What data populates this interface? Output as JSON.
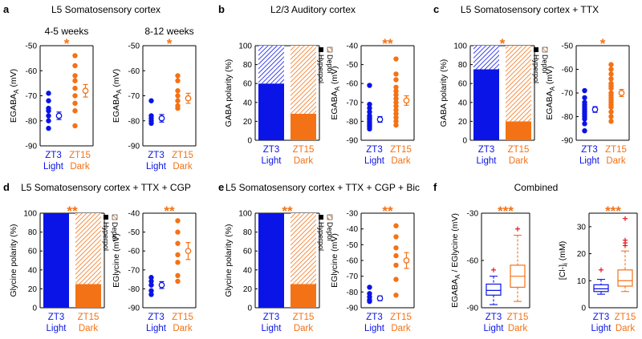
{
  "colors": {
    "light": "#0a14e6",
    "dark": "#f47216",
    "outlier": "#e8141e",
    "axis": "#000000"
  },
  "panels": [
    {
      "label": "a",
      "title": "L5 Somatosensory cortex"
    },
    {
      "label": "b",
      "title": "L2/3 Auditory cortex"
    },
    {
      "label": "c",
      "title": "L5 Somatosensory cortex + TTX"
    },
    {
      "label": "d",
      "title": "L5 Somatosensory cortex + TTX + CGP"
    },
    {
      "label": "e",
      "title": "L5 Somatosensory cortex + TTX + CGP + Bic"
    },
    {
      "label": "f",
      "title": "Combined"
    }
  ],
  "legend": {
    "depol": "Depol",
    "hyperpol": "Hyperpol"
  },
  "chart_data": [
    {
      "id": "a1",
      "type": "scatter",
      "subtitle": "4-5 weeks",
      "ylabel": "EGABA_A (mV)",
      "ylim": [
        -90,
        -50
      ],
      "yticks": [
        -90,
        -80,
        -70,
        -60,
        -50
      ],
      "categories": [
        [
          "ZT3",
          "Light"
        ],
        [
          "ZT15",
          "Dark"
        ]
      ],
      "sig": "*",
      "series": [
        {
          "name": "ZT3 Light",
          "values": [
            -69,
            -72,
            -75,
            -76,
            -78,
            -80,
            -83
          ],
          "mean": -78,
          "sem": 1.5
        },
        {
          "name": "ZT15 Dark",
          "values": [
            -54,
            -58,
            -62,
            -64,
            -67,
            -70,
            -73,
            -76,
            -82
          ],
          "mean": -68,
          "sem": 2.5
        }
      ]
    },
    {
      "id": "a2",
      "type": "scatter",
      "subtitle": "8-12 weeks",
      "ylabel": "EGABA_A (mV)",
      "ylim": [
        -90,
        -50
      ],
      "yticks": [
        -90,
        -80,
        -70,
        -60,
        -50
      ],
      "categories": [
        [
          "ZT3",
          "Light"
        ],
        [
          "ZT15",
          "Dark"
        ]
      ],
      "sig": "*",
      "series": [
        {
          "name": "ZT3 Light",
          "values": [
            -72,
            -78,
            -79,
            -80,
            -81
          ],
          "mean": -79,
          "sem": 1.5
        },
        {
          "name": "ZT15 Dark",
          "values": [
            -62,
            -64,
            -68,
            -70,
            -72,
            -74,
            -75
          ],
          "mean": -71,
          "sem": 2
        }
      ]
    },
    {
      "id": "b1",
      "type": "bar",
      "ylabel": "GABA polarity (%)",
      "ylim": [
        0,
        100
      ],
      "yticks": [
        0,
        20,
        40,
        60,
        80,
        100
      ],
      "categories": [
        [
          "ZT3",
          "Light"
        ],
        [
          "ZT15",
          "Dark"
        ]
      ],
      "sig": "",
      "series": [
        {
          "name": "Hyperpol",
          "values": [
            60,
            28
          ]
        },
        {
          "name": "Depol",
          "values": [
            40,
            72
          ]
        }
      ]
    },
    {
      "id": "b2",
      "type": "scatter",
      "ylabel": "EGABA_A (mV)",
      "ylim": [
        -90,
        -40
      ],
      "yticks": [
        -90,
        -80,
        -70,
        -60,
        -50,
        -40
      ],
      "categories": [
        [
          "ZT3",
          "Light"
        ],
        [
          "ZT15",
          "Dark"
        ]
      ],
      "sig": "**",
      "series": [
        {
          "name": "ZT3 Light",
          "values": [
            -61,
            -71,
            -73,
            -75,
            -77,
            -78,
            -79,
            -80,
            -81,
            -82,
            -83,
            -84
          ],
          "mean": -79,
          "sem": 1.5
        },
        {
          "name": "ZT15 Dark",
          "values": [
            -47,
            -55,
            -58,
            -62,
            -64,
            -66,
            -68,
            -70,
            -72,
            -74,
            -76,
            -78,
            -80,
            -82
          ],
          "mean": -69,
          "sem": 2.5
        }
      ]
    },
    {
      "id": "c1",
      "type": "bar",
      "ylabel": "GABA polarity (%)",
      "ylim": [
        0,
        100
      ],
      "yticks": [
        0,
        20,
        40,
        60,
        80,
        100
      ],
      "categories": [
        [
          "ZT3",
          "Light"
        ],
        [
          "ZT15",
          "Dark"
        ]
      ],
      "sig": "*",
      "series": [
        {
          "name": "Hyperpol",
          "values": [
            75,
            20
          ]
        },
        {
          "name": "Depol",
          "values": [
            25,
            80
          ]
        }
      ]
    },
    {
      "id": "c2",
      "type": "scatter",
      "ylabel": "EGABA_A (mV)",
      "ylim": [
        -90,
        -50
      ],
      "yticks": [
        -90,
        -80,
        -70,
        -60,
        -50
      ],
      "categories": [
        [
          "ZT3",
          "Light"
        ],
        [
          "ZT15",
          "Dark"
        ]
      ],
      "sig": "*",
      "series": [
        {
          "name": "ZT3 Light",
          "values": [
            -69,
            -72,
            -74,
            -75,
            -76,
            -77,
            -78,
            -79,
            -80,
            -81,
            -83,
            -86
          ],
          "mean": -77,
          "sem": 1.2
        },
        {
          "name": "ZT15 Dark",
          "values": [
            -58,
            -60,
            -62,
            -64,
            -66,
            -67,
            -68,
            -70,
            -71,
            -72,
            -73,
            -74,
            -75,
            -76,
            -78,
            -80,
            -82
          ],
          "mean": -70,
          "sem": 1.5
        }
      ]
    },
    {
      "id": "d1",
      "type": "bar",
      "ylabel": "Glycine polarity (%)",
      "ylim": [
        0,
        100
      ],
      "yticks": [
        0,
        20,
        40,
        60,
        80,
        100
      ],
      "categories": [
        [
          "ZT3",
          "Light"
        ],
        [
          "ZT15",
          "Dark"
        ]
      ],
      "sig": "**",
      "series": [
        {
          "name": "Hyperpol",
          "values": [
            100,
            25
          ]
        },
        {
          "name": "Depol",
          "values": [
            0,
            75
          ]
        }
      ]
    },
    {
      "id": "d2",
      "type": "scatter",
      "ylabel": "EGlycine (mV)",
      "ylim": [
        -90,
        -40
      ],
      "yticks": [
        -90,
        -80,
        -70,
        -60,
        -50,
        -40
      ],
      "categories": [
        [
          "ZT3",
          "Light"
        ],
        [
          "ZT15",
          "Dark"
        ]
      ],
      "sig": "**",
      "series": [
        {
          "name": "ZT3 Light",
          "values": [
            -74,
            -76,
            -78,
            -81,
            -83
          ],
          "mean": -78,
          "sem": 1.8
        },
        {
          "name": "ZT15 Dark",
          "values": [
            -44,
            -50,
            -56,
            -62,
            -66,
            -73,
            -76
          ],
          "mean": -60,
          "sem": 4.5
        }
      ]
    },
    {
      "id": "e1",
      "type": "bar",
      "ylabel": "Glycine polarity (%)",
      "ylim": [
        0,
        100
      ],
      "yticks": [
        0,
        20,
        40,
        60,
        80,
        100
      ],
      "categories": [
        [
          "ZT3",
          "Light"
        ],
        [
          "ZT15",
          "Dark"
        ]
      ],
      "sig": "**",
      "series": [
        {
          "name": "Hyperpol",
          "values": [
            100,
            25
          ]
        },
        {
          "name": "Depol",
          "values": [
            0,
            75
          ]
        }
      ]
    },
    {
      "id": "e2",
      "type": "scatter",
      "ylabel": "EGlycine (mV)",
      "ylim": [
        -90,
        -30
      ],
      "yticks": [
        -90,
        -80,
        -70,
        -60,
        -50,
        -40,
        -30
      ],
      "categories": [
        [
          "ZT3",
          "Light"
        ],
        [
          "ZT15",
          "Dark"
        ]
      ],
      "sig": "**",
      "series": [
        {
          "name": "ZT3 Light",
          "values": [
            -77,
            -81,
            -83,
            -85,
            -86
          ],
          "mean": -84,
          "sem": 1.5
        },
        {
          "name": "ZT15 Dark",
          "values": [
            -38,
            -45,
            -52,
            -57,
            -63,
            -72,
            -82
          ],
          "mean": -60,
          "sem": 5
        }
      ]
    },
    {
      "id": "f1",
      "type": "box",
      "ylabel": "EGABA_A / EGlycine (mV)",
      "ylim": [
        -90,
        -30
      ],
      "yticks": [
        -90,
        -60,
        -30
      ],
      "categories": [
        [
          "ZT3",
          "Light"
        ],
        [
          "ZT15",
          "Dark"
        ]
      ],
      "sig": "***",
      "series": [
        {
          "name": "ZT3 Light",
          "min": -88,
          "q1": -82,
          "median": -79,
          "q3": -75,
          "max": -70,
          "outliers": [
            -66
          ]
        },
        {
          "name": "ZT15 Dark",
          "min": -86,
          "q1": -77,
          "median": -70,
          "q3": -63,
          "max": -44,
          "outliers": [
            -40
          ]
        }
      ]
    },
    {
      "id": "f2",
      "type": "box",
      "ylabel": "[Cl-]i (mM)",
      "ylim": [
        0,
        35
      ],
      "yticks": [
        0,
        10,
        20,
        30
      ],
      "categories": [
        [
          "ZT3",
          "Light"
        ],
        [
          "ZT15",
          "Dark"
        ]
      ],
      "sig": "***",
      "series": [
        {
          "name": "ZT3 Light",
          "min": 5,
          "q1": 6,
          "median": 7,
          "q3": 8.5,
          "max": 10.5,
          "outliers": [
            14
          ]
        },
        {
          "name": "ZT15 Dark",
          "min": 6,
          "q1": 8,
          "median": 10,
          "q3": 14,
          "max": 21,
          "outliers": [
            23,
            24,
            25,
            33
          ]
        }
      ]
    }
  ]
}
